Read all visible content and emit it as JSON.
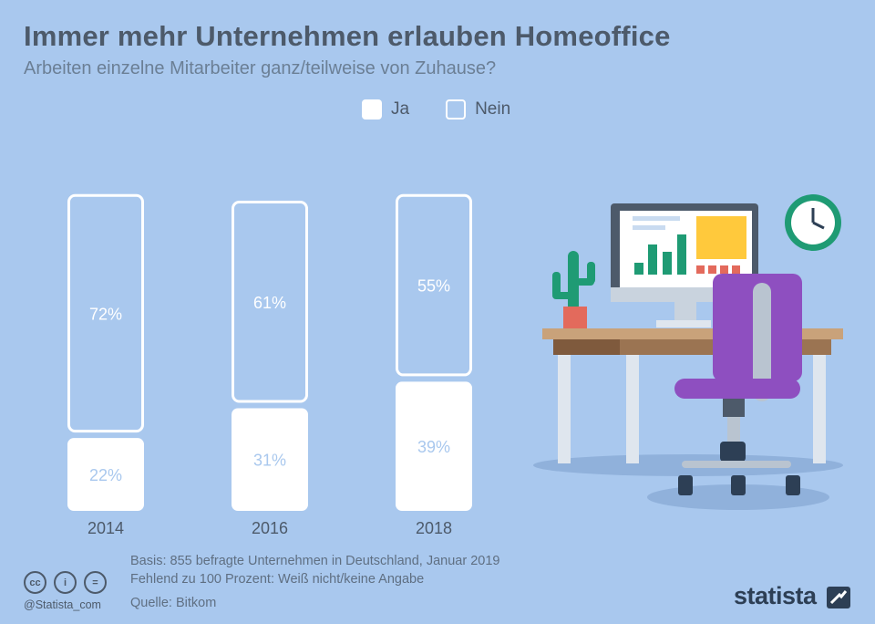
{
  "header": {
    "title": "Immer mehr Unternehmen erlauben Homeoffice",
    "subtitle": "Arbeiten einzelne Mitarbeiter ganz/teilweise von Zuhause?"
  },
  "legend": {
    "ja": "Ja",
    "nein": "Nein"
  },
  "chart_data": {
    "type": "bar",
    "stacked": true,
    "categories": [
      "2014",
      "2016",
      "2018"
    ],
    "series": [
      {
        "name": "Ja",
        "values": [
          22,
          31,
          39
        ],
        "labels": [
          "22%",
          "31%",
          "39%"
        ],
        "color": "#ffffff",
        "style": "filled"
      },
      {
        "name": "Nein",
        "values": [
          72,
          61,
          55
        ],
        "labels": [
          "72%",
          "61%",
          "55%"
        ],
        "color": "#ffffff",
        "style": "outline"
      }
    ],
    "ylim": [
      0,
      100
    ],
    "grid": false,
    "legend_position": "top-center"
  },
  "footer": {
    "basis": "Basis: 855 befragte Unternehmen in Deutschland, Januar 2019",
    "missing": "Fehlend zu 100 Prozent: Weiß nicht/keine Angabe",
    "source": "Quelle: Bitkom",
    "handle": "@Statista_com",
    "brand": "statista"
  },
  "colors": {
    "background": "#a9c8ee",
    "title": "#4d5a6a",
    "ja_label": "#a9c8ee",
    "nein_label": "#ffffff",
    "chair": "#8e4fc0",
    "desk": "#c9a27a"
  },
  "icons": [
    "creative-commons-icon",
    "attribution-icon",
    "no-derivatives-icon",
    "statista-logo-icon",
    "clock-icon",
    "cactus-icon",
    "monitor-icon",
    "chair-icon"
  ]
}
